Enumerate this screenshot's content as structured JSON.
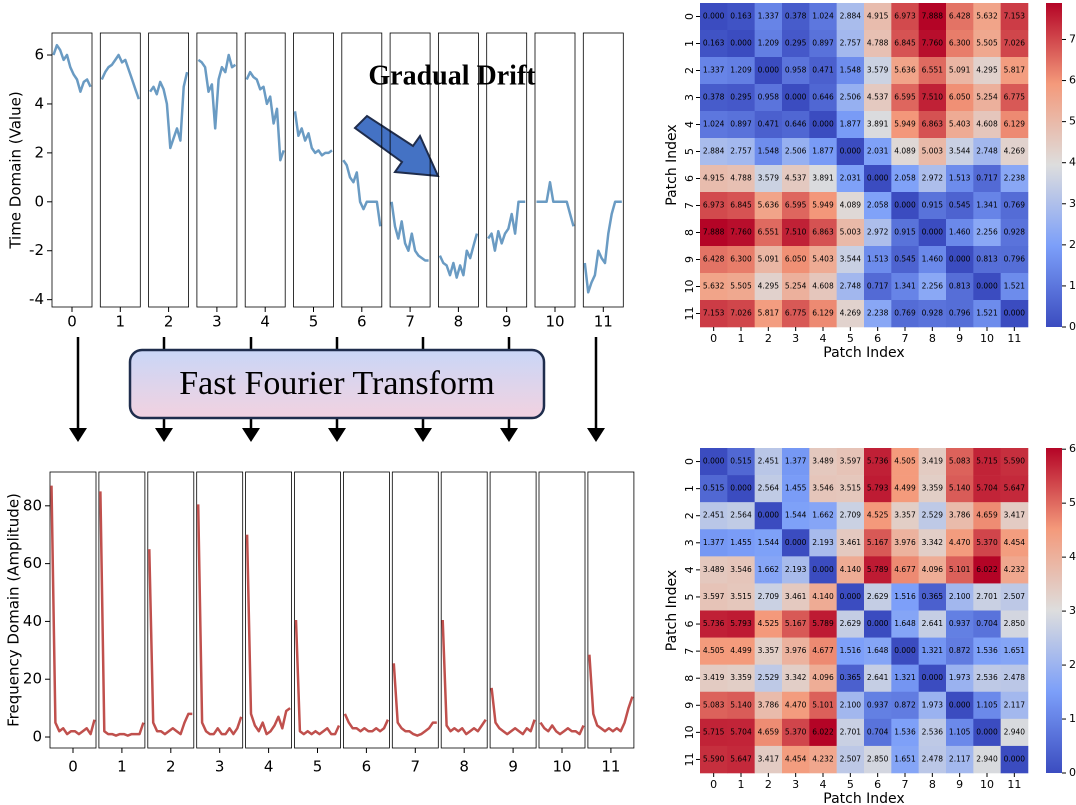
{
  "chart_data": [
    {
      "type": "line",
      "ylabel": "Time Domain (Value)",
      "color": "#6a9bc3",
      "ylim": [
        -4.3,
        6.9
      ],
      "yticks": [
        -4,
        -2,
        0,
        2,
        4,
        6
      ],
      "annotations": [
        "Gradual Drift",
        "Fast Fourier Transform"
      ],
      "categories": [
        0,
        1,
        2,
        3,
        4,
        5,
        6,
        7,
        8,
        9,
        10,
        11
      ],
      "values": [
        [
          6.0,
          6.4,
          6.2,
          5.8,
          6.0,
          5.5,
          5.2,
          5.0,
          4.5,
          4.9,
          5.0,
          4.7
        ],
        [
          5.0,
          5.3,
          5.5,
          5.6,
          5.8,
          6.0,
          5.7,
          5.8,
          5.4,
          5.0,
          4.6,
          4.2
        ],
        [
          4.5,
          4.7,
          4.4,
          4.9,
          4.6,
          4.0,
          2.2,
          2.6,
          3.0,
          2.5,
          4.7,
          5.3
        ],
        [
          5.8,
          5.7,
          5.5,
          4.5,
          4.8,
          3.0,
          5.0,
          5.5,
          5.3,
          6.0,
          5.5,
          5.6
        ],
        [
          5.0,
          5.3,
          5.1,
          5.0,
          4.6,
          4.7,
          4.0,
          4.3,
          3.2,
          3.8,
          1.7,
          2.1
        ],
        [
          3.7,
          2.7,
          3.0,
          2.5,
          2.8,
          2.2,
          2.0,
          2.1,
          1.9,
          2.0,
          2.0,
          2.1
        ],
        [
          1.7,
          1.5,
          1.0,
          0.8,
          1.2,
          0.0,
          -0.3,
          0.0,
          0.0,
          0.0,
          0.0,
          -1.0
        ],
        [
          0.0,
          -1.0,
          -1.5,
          -0.8,
          -1.7,
          -2.0,
          -1.3,
          -2.0,
          -2.2,
          -2.3,
          -2.4,
          -2.4
        ],
        [
          -2.2,
          -2.5,
          -2.6,
          -3.0,
          -2.5,
          -3.1,
          -2.6,
          -3.0,
          -2.0,
          -2.3,
          -1.8,
          -1.3
        ],
        [
          -1.5,
          -1.3,
          -2.0,
          -1.2,
          -1.7,
          -1.3,
          -1.1,
          -0.5,
          -1.3,
          0.0,
          0.0,
          0.0
        ],
        [
          0.0,
          0.0,
          0.0,
          0.0,
          0.8,
          0.0,
          0.0,
          0.0,
          0.0,
          0.0,
          -0.5,
          -1.0
        ],
        [
          -2.5,
          -3.7,
          -3.3,
          -3.0,
          -2.0,
          -2.3,
          -2.5,
          -1.3,
          -0.5,
          0.0,
          0.0,
          0.0
        ]
      ]
    },
    {
      "type": "line",
      "ylabel": "Frequency Domain (Amplitude)",
      "color": "#c0504d",
      "ylim": [
        -3.8,
        91.7
      ],
      "yticks": [
        0,
        20,
        40,
        60,
        80
      ],
      "categories": [
        0,
        1,
        2,
        3,
        4,
        5,
        6,
        7,
        8,
        9,
        10,
        11
      ],
      "values": [
        [
          87,
          5,
          2,
          3,
          1,
          2,
          2,
          1,
          2,
          3,
          1,
          6
        ],
        [
          85,
          2,
          1,
          1,
          0.5,
          1,
          1,
          0.5,
          1,
          1,
          1,
          5
        ],
        [
          65,
          5,
          2,
          2,
          1,
          2,
          3,
          2,
          1,
          5,
          8,
          8
        ],
        [
          80.5,
          5,
          2,
          1,
          1,
          3,
          1,
          1,
          3,
          1,
          3,
          7
        ],
        [
          70,
          8,
          4,
          2,
          5,
          1,
          2,
          4,
          7,
          3,
          9,
          10
        ],
        [
          40.5,
          2,
          1,
          2,
          1,
          2,
          1,
          2,
          3,
          1,
          1,
          4
        ],
        [
          8,
          5,
          3,
          3,
          2,
          3,
          2,
          2,
          3,
          2,
          3,
          6
        ],
        [
          25.5,
          5,
          3,
          2,
          2,
          1,
          0.5,
          1,
          2,
          3,
          5,
          5
        ],
        [
          40.5,
          4,
          2,
          3,
          2,
          3,
          1,
          2,
          3,
          2,
          4,
          6
        ],
        [
          17,
          5,
          3,
          2,
          1,
          2,
          3,
          2,
          1,
          3,
          2,
          6
        ],
        [
          5,
          3,
          2,
          4,
          2,
          1,
          2,
          3,
          2,
          2,
          1,
          4
        ],
        [
          28.5,
          8,
          4,
          3,
          2,
          3,
          2,
          3,
          2,
          5,
          10,
          14
        ]
      ]
    },
    {
      "type": "heatmap",
      "xlabel": "Patch Index",
      "ylabel": "Patch Index",
      "colormap": "coolwarm",
      "zlim": [
        0,
        7.888
      ],
      "colorbar_ticks": [
        0,
        1,
        2,
        3,
        4,
        5,
        6,
        7
      ],
      "categories": [
        0,
        1,
        2,
        3,
        4,
        5,
        6,
        7,
        8,
        9,
        10,
        11
      ],
      "values": [
        [
          0.0,
          0.163,
          1.337,
          0.378,
          1.024,
          2.884,
          4.915,
          6.973,
          7.888,
          6.428,
          5.632,
          7.153
        ],
        [
          0.163,
          0.0,
          1.209,
          0.295,
          0.897,
          2.757,
          4.788,
          6.845,
          7.76,
          6.3,
          5.505,
          7.026
        ],
        [
          1.337,
          1.209,
          0.0,
          0.958,
          0.471,
          1.548,
          3.579,
          5.636,
          6.551,
          5.091,
          4.295,
          5.817
        ],
        [
          0.378,
          0.295,
          0.958,
          0.0,
          0.646,
          2.506,
          4.537,
          6.595,
          7.51,
          6.05,
          5.254,
          6.775
        ],
        [
          1.024,
          0.897,
          0.471,
          0.646,
          0.0,
          1.877,
          3.891,
          5.949,
          6.863,
          5.403,
          4.608,
          6.129
        ],
        [
          2.884,
          2.757,
          1.548,
          2.506,
          1.877,
          0.0,
          2.031,
          4.089,
          5.003,
          3.544,
          2.748,
          4.269
        ],
        [
          4.915,
          4.788,
          3.579,
          4.537,
          3.891,
          2.031,
          0.0,
          2.058,
          2.972,
          1.513,
          0.717,
          2.238
        ],
        [
          6.973,
          6.845,
          5.636,
          6.595,
          5.949,
          4.089,
          2.058,
          0.0,
          0.915,
          0.545,
          1.341,
          0.769
        ],
        [
          7.888,
          7.76,
          6.551,
          7.51,
          6.863,
          5.003,
          2.972,
          0.915,
          0.0,
          1.46,
          2.256,
          0.928
        ],
        [
          6.428,
          6.3,
          5.091,
          6.05,
          5.403,
          3.544,
          1.513,
          0.545,
          1.46,
          0.0,
          0.813,
          0.796
        ],
        [
          5.632,
          5.505,
          4.295,
          5.254,
          4.608,
          2.748,
          0.717,
          1.341,
          2.256,
          0.813,
          0.0,
          1.521
        ],
        [
          7.153,
          7.026,
          5.817,
          6.775,
          6.129,
          4.269,
          2.238,
          0.769,
          0.928,
          0.796,
          1.521,
          0.0
        ]
      ],
      "value_labels": [
        [
          "0.000",
          "0.163",
          "1.337",
          "0.378",
          "1.024",
          "2.884",
          "4.915",
          "6.973",
          "7.888",
          "6.428",
          "5.632",
          "7.153"
        ],
        [
          "0.163",
          "0.000",
          "1.209",
          "0.295",
          "0.897",
          "2.757",
          "4.788",
          "6.845",
          "7.760",
          "6.300",
          "5.505",
          "7.026"
        ],
        [
          "1.337",
          "1.209",
          "0.000",
          "0.958",
          "0.471",
          "1.548",
          "3.579",
          "5.636",
          "6.551",
          "5.091",
          "4.295",
          "5.817"
        ],
        [
          "0.378",
          "0.295",
          "0.958",
          "0.000",
          "0.646",
          "2.506",
          "4.537",
          "6.595",
          "7.510",
          "6.050",
          "5.254",
          "6.775"
        ],
        [
          "1.024",
          "0.897",
          "0.471",
          "0.646",
          "0.000",
          "1.877",
          "3.891",
          "5.949",
          "6.863",
          "5.403",
          "4.608",
          "6.129"
        ],
        [
          "2.884",
          "2.757",
          "1.548",
          "2.506",
          "1.877",
          "0.000",
          "2.031",
          "4.089",
          "5.003",
          "3.544",
          "2.748",
          "4.269"
        ],
        [
          "4.915",
          "4.788",
          "3.579",
          "4.537",
          "3.891",
          "2.031",
          "0.000",
          "2.058",
          "2.972",
          "1.513",
          "0.717",
          "2.238"
        ],
        [
          "6.973",
          "6.845",
          "5.636",
          "6.595",
          "5.949",
          "4.089",
          "2.058",
          "0.000",
          "0.915",
          "0.545",
          "1.341",
          "0.769"
        ],
        [
          "7.888",
          "7.760",
          "6.551",
          "7.510",
          "6.863",
          "5.003",
          "2.972",
          "0.915",
          "0.000",
          "1.460",
          "2.256",
          "0.928"
        ],
        [
          "6.428",
          "6.300",
          "5.091",
          "6.050",
          "5.403",
          "3.544",
          "1.513",
          "0.545",
          "1.460",
          "0.000",
          "0.813",
          "0.796"
        ],
        [
          "5.632",
          "5.505",
          "4.295",
          "5.254",
          "4.608",
          "2.748",
          "0.717",
          "1.341",
          "2.256",
          "0.813",
          "0.000",
          "1.521"
        ],
        [
          "7.153",
          "7.026",
          "5.817",
          "6.775",
          "6.129",
          "4.269",
          "2.238",
          "0.769",
          "0.928",
          "0.796",
          "1.521",
          "0.000"
        ]
      ]
    },
    {
      "type": "heatmap",
      "xlabel": "Patch Index",
      "ylabel": "Patch Index",
      "colormap": "coolwarm",
      "zlim": [
        0,
        6.022
      ],
      "colorbar_ticks": [
        0,
        1,
        2,
        3,
        4,
        5,
        6
      ],
      "categories": [
        0,
        1,
        2,
        3,
        4,
        5,
        6,
        7,
        8,
        9,
        10,
        11
      ],
      "values": [
        [
          0.0,
          0.515,
          2.451,
          1.377,
          3.489,
          3.597,
          5.736,
          4.505,
          3.419,
          5.083,
          5.715,
          5.59
        ],
        [
          0.515,
          0.0,
          2.564,
          1.455,
          3.546,
          3.515,
          5.793,
          4.499,
          3.359,
          5.14,
          5.704,
          5.647
        ],
        [
          2.451,
          2.564,
          0.0,
          1.544,
          1.662,
          2.709,
          4.525,
          3.357,
          2.529,
          3.786,
          4.659,
          3.417
        ],
        [
          1.377,
          1.455,
          1.544,
          0.0,
          2.193,
          3.461,
          5.167,
          3.976,
          3.342,
          4.47,
          5.37,
          4.454
        ],
        [
          3.489,
          3.546,
          1.662,
          2.193,
          0.0,
          4.14,
          5.789,
          4.677,
          4.096,
          5.101,
          6.022,
          4.232
        ],
        [
          3.597,
          3.515,
          2.709,
          3.461,
          4.14,
          0.0,
          2.629,
          1.516,
          0.365,
          2.1,
          2.701,
          2.507
        ],
        [
          5.736,
          5.793,
          4.525,
          5.167,
          5.789,
          2.629,
          0.0,
          1.648,
          2.641,
          0.937,
          0.704,
          2.85
        ],
        [
          4.505,
          4.499,
          3.357,
          3.976,
          4.677,
          1.516,
          1.648,
          0.0,
          1.321,
          0.872,
          1.536,
          1.651
        ],
        [
          3.419,
          3.359,
          2.529,
          3.342,
          4.096,
          0.365,
          2.641,
          1.321,
          0.0,
          1.973,
          2.536,
          2.478
        ],
        [
          5.083,
          5.14,
          3.786,
          4.47,
          5.101,
          2.1,
          0.937,
          0.872,
          1.973,
          0.0,
          1.105,
          2.117
        ],
        [
          5.715,
          5.704,
          4.659,
          5.37,
          6.022,
          2.701,
          0.704,
          1.536,
          2.536,
          1.105,
          0.0,
          2.94
        ],
        [
          5.59,
          5.647,
          3.417,
          4.454,
          4.232,
          2.507,
          2.85,
          1.651,
          2.478,
          2.117,
          2.94,
          0.0
        ]
      ],
      "value_labels": [
        [
          "0.000",
          "0.515",
          "2.451",
          "1.377",
          "3.489",
          "3.597",
          "5.736",
          "4.505",
          "3.419",
          "5.083",
          "5.715",
          "5.590"
        ],
        [
          "0.515",
          "0.000",
          "2.564",
          "1.455",
          "3.546",
          "3.515",
          "5.793",
          "4.499",
          "3.359",
          "5.140",
          "5.704",
          "5.647"
        ],
        [
          "2.451",
          "2.564",
          "0.000",
          "1.544",
          "1.662",
          "2.709",
          "4.525",
          "3.357",
          "2.529",
          "3.786",
          "4.659",
          "3.417"
        ],
        [
          "1.377",
          "1.455",
          "1.544",
          "0.000",
          "2.193",
          "3.461",
          "5.167",
          "3.976",
          "3.342",
          "4.470",
          "5.370",
          "4.454"
        ],
        [
          "3.489",
          "3.546",
          "1.662",
          "2.193",
          "0.000",
          "4.140",
          "5.789",
          "4.677",
          "4.096",
          "5.101",
          "6.022",
          "4.232"
        ],
        [
          "3.597",
          "3.515",
          "2.709",
          "3.461",
          "4.140",
          "0.000",
          "2.629",
          "1.516",
          "0.365",
          "2.100",
          "2.701",
          "2.507"
        ],
        [
          "5.736",
          "5.793",
          "4.525",
          "5.167",
          "5.789",
          "2.629",
          "0.000",
          "1.648",
          "2.641",
          "0.937",
          "0.704",
          "2.850"
        ],
        [
          "4.505",
          "4.499",
          "3.357",
          "3.976",
          "4.677",
          "1.516",
          "1.648",
          "0.000",
          "1.321",
          "0.872",
          "1.536",
          "1.651"
        ],
        [
          "3.419",
          "3.359",
          "2.529",
          "3.342",
          "4.096",
          "0.365",
          "2.641",
          "1.321",
          "0.000",
          "1.973",
          "2.536",
          "2.478"
        ],
        [
          "5.083",
          "5.140",
          "3.786",
          "4.470",
          "5.101",
          "2.100",
          "0.937",
          "0.872",
          "1.973",
          "0.000",
          "1.105",
          "2.117"
        ],
        [
          "5.715",
          "5.704",
          "4.659",
          "5.370",
          "6.022",
          "2.701",
          "0.704",
          "1.536",
          "2.536",
          "1.105",
          "0.000",
          "2.940"
        ],
        [
          "5.590",
          "5.647",
          "3.417",
          "4.454",
          "4.232",
          "2.507",
          "2.850",
          "1.651",
          "2.478",
          "2.117",
          "2.940",
          "0.000"
        ]
      ]
    }
  ]
}
